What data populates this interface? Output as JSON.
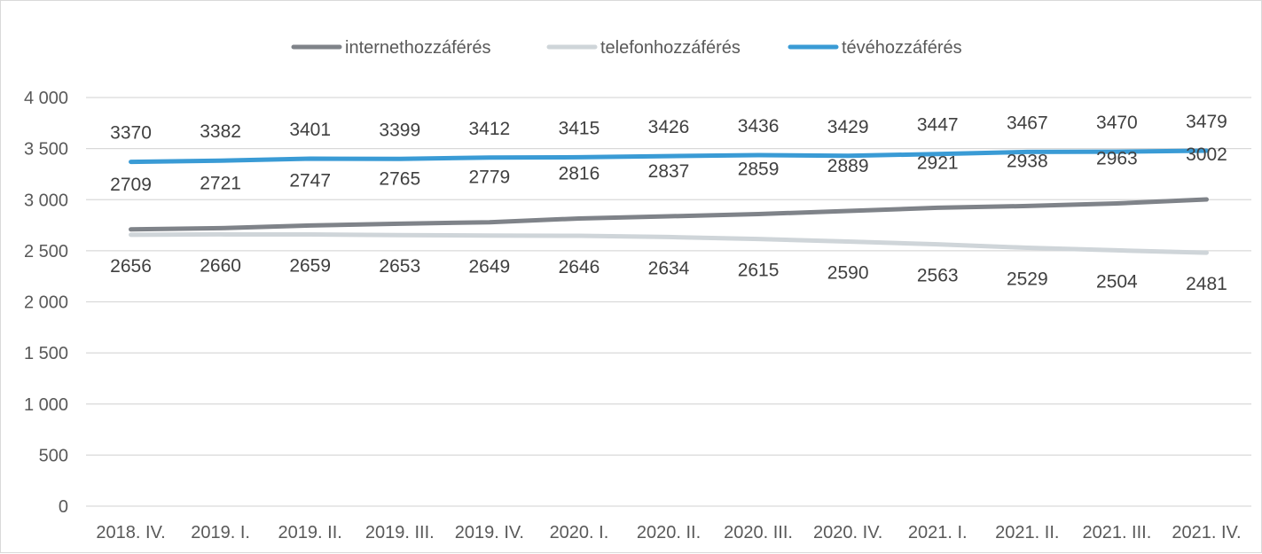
{
  "chart_data": {
    "type": "line",
    "categories": [
      "2018. IV.",
      "2019. I.",
      "2019. II.",
      "2019. III.",
      "2019. IV.",
      "2020. I.",
      "2020. II.",
      "2020. III.",
      "2020. IV.",
      "2021. I.",
      "2021. II.",
      "2021. III.",
      "2021. IV."
    ],
    "series": [
      {
        "name": "internethozzáférés",
        "color": "#7f8389",
        "values": [
          2709,
          2721,
          2747,
          2765,
          2779,
          2816,
          2837,
          2859,
          2889,
          2921,
          2938,
          2963,
          3002
        ]
      },
      {
        "name": "telefonhozzáférés",
        "color": "#cfd5d9",
        "values": [
          2656,
          2660,
          2659,
          2653,
          2649,
          2646,
          2634,
          2615,
          2590,
          2563,
          2529,
          2504,
          2481
        ]
      },
      {
        "name": "tévéhozzáférés",
        "color": "#3a9bd5",
        "values": [
          3370,
          3382,
          3401,
          3399,
          3412,
          3415,
          3426,
          3436,
          3429,
          3447,
          3467,
          3470,
          3479
        ]
      }
    ],
    "y_ticks": [
      "0",
      "500",
      "1 000",
      "1 500",
      "2 000",
      "2 500",
      "3 000",
      "3 500",
      "4 000"
    ],
    "ylim": [
      0,
      4000
    ],
    "grid": true,
    "legend_position": "top"
  }
}
